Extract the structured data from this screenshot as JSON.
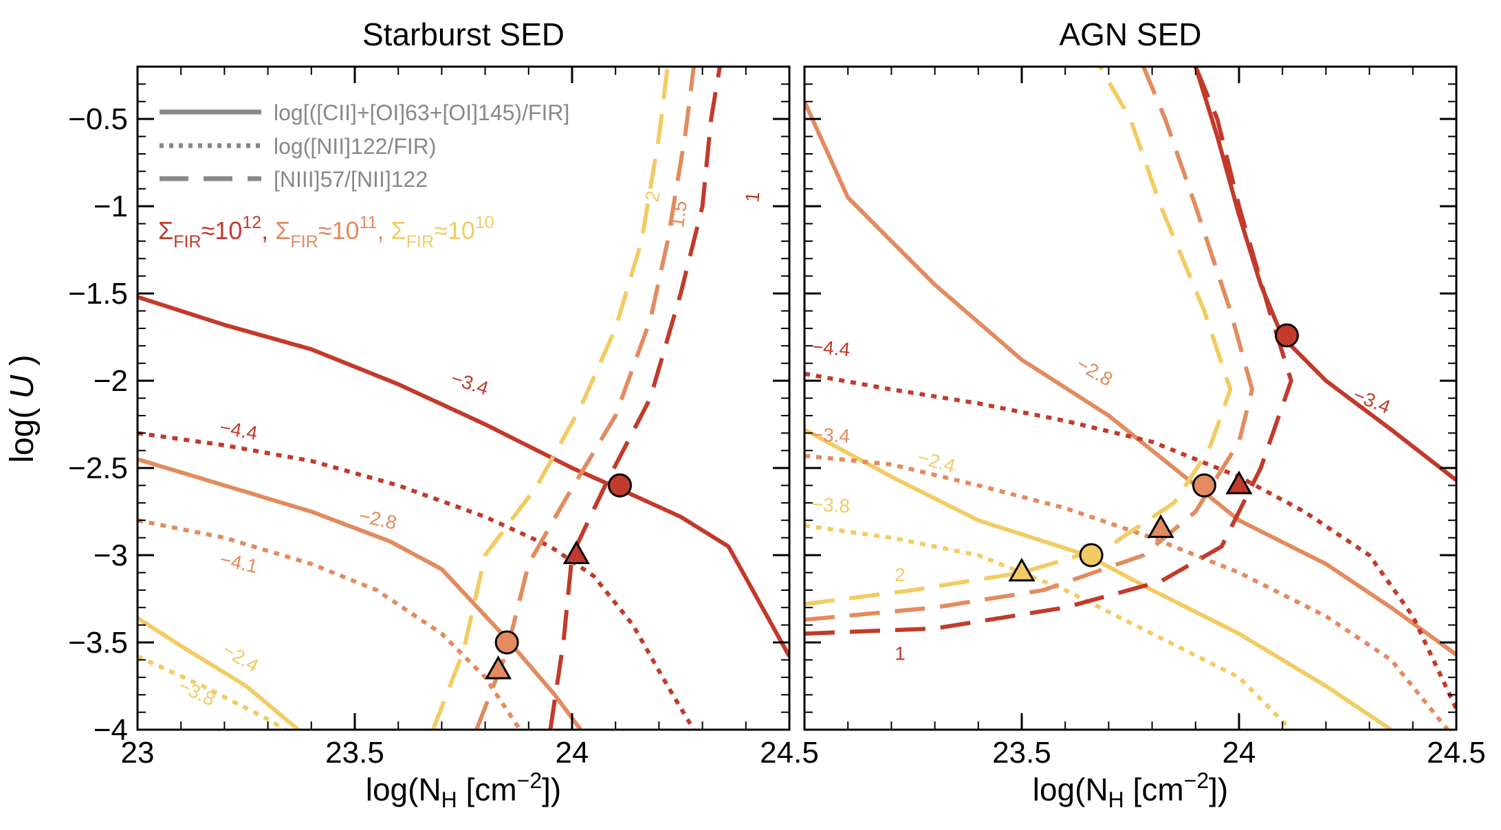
{
  "colors": {
    "red": "#c23a2b",
    "orange": "#e38b5e",
    "yellow": "#f2cc63",
    "gray": "#888888",
    "axis": "#000000"
  },
  "y_axis_label": "log( U )",
  "y_axis_label_main": "log( ",
  "y_axis_label_var": "U",
  "y_axis_label_end": " )",
  "x_axis_label": "log(NH [cm−2])",
  "x_axis_label_parts": {
    "pre": "log(N",
    "sub": "H",
    "mid": " [cm",
    "sup": "−2",
    "post": "])"
  },
  "legend": {
    "line_styles": [
      {
        "style": "solid",
        "label": "log[([CII]+[OI]63+[OI]145)/FIR]"
      },
      {
        "style": "dotted",
        "label": "log([NII]122/FIR)"
      },
      {
        "style": "dashed",
        "label": "[NIII]57/[NII]122"
      }
    ],
    "sigma_entries": [
      {
        "sym": "Σ",
        "sub": "FIR",
        "approx": "≈10",
        "exp": "12",
        "sep": ", ",
        "color": "red"
      },
      {
        "sym": "Σ",
        "sub": "FIR",
        "approx": "≈10",
        "exp": "11",
        "sep": ", ",
        "color": "orange"
      },
      {
        "sym": "Σ",
        "sub": "FIR",
        "approx": "≈10",
        "exp": "10",
        "sep": "",
        "color": "yellow"
      }
    ]
  },
  "chart_data": [
    {
      "title": "Starburst SED",
      "type": "line",
      "xlabel": "log(NH [cm−2])",
      "ylabel": "log( U )",
      "xlim": [
        23.0,
        24.5
      ],
      "ylim": [
        -4.0,
        -0.2
      ],
      "x_ticks": [
        23.0,
        23.5,
        24.0,
        24.5
      ],
      "x_tick_labels": [
        "23",
        "23.5",
        "24",
        "24.5"
      ],
      "y_ticks": [
        -4.0,
        -3.5,
        -3.0,
        -2.5,
        -2.0,
        -1.5,
        -1.0,
        -0.5
      ],
      "y_tick_labels": [
        "−4",
        "−3.5",
        "−3",
        "−2.5",
        "−2",
        "−1.5",
        "−1",
        "−0.5"
      ],
      "series": [
        {
          "name": "CII+OI/FIR Σ12",
          "style": "solid",
          "color": "red",
          "points": [
            [
              23.0,
              -1.52
            ],
            [
              23.2,
              -1.68
            ],
            [
              23.4,
              -1.82
            ],
            [
              23.6,
              -2.02
            ],
            [
              23.8,
              -2.25
            ],
            [
              24.0,
              -2.5
            ],
            [
              24.1,
              -2.61
            ],
            [
              24.25,
              -2.78
            ],
            [
              24.36,
              -2.95
            ],
            [
              24.5,
              -3.58
            ]
          ]
        },
        {
          "name": "CII+OI/FIR Σ11",
          "style": "solid",
          "color": "orange",
          "points": [
            [
              23.0,
              -2.45
            ],
            [
              23.2,
              -2.6
            ],
            [
              23.4,
              -2.75
            ],
            [
              23.58,
              -2.92
            ],
            [
              23.7,
              -3.08
            ],
            [
              23.85,
              -3.48
            ],
            [
              23.96,
              -3.8
            ],
            [
              24.02,
              -4.0
            ]
          ]
        },
        {
          "name": "CII+OI/FIR Σ10",
          "style": "solid",
          "color": "yellow",
          "points": [
            [
              23.0,
              -3.36
            ],
            [
              23.1,
              -3.52
            ],
            [
              23.25,
              -3.75
            ],
            [
              23.37,
              -4.0
            ]
          ]
        },
        {
          "name": "NII122/FIR Σ12",
          "style": "dotted",
          "color": "red",
          "points": [
            [
              23.0,
              -2.3
            ],
            [
              23.2,
              -2.37
            ],
            [
              23.4,
              -2.46
            ],
            [
              23.6,
              -2.6
            ],
            [
              23.8,
              -2.78
            ],
            [
              23.95,
              -2.95
            ],
            [
              24.05,
              -3.12
            ],
            [
              24.14,
              -3.4
            ],
            [
              24.22,
              -3.75
            ],
            [
              24.28,
              -4.0
            ]
          ]
        },
        {
          "name": "NII122/FIR Σ11",
          "style": "dotted",
          "color": "orange",
          "points": [
            [
              23.0,
              -2.8
            ],
            [
              23.2,
              -2.9
            ],
            [
              23.4,
              -3.05
            ],
            [
              23.55,
              -3.2
            ],
            [
              23.7,
              -3.45
            ],
            [
              23.8,
              -3.7
            ],
            [
              23.88,
              -4.0
            ]
          ]
        },
        {
          "name": "NII122/FIR Σ10",
          "style": "dotted",
          "color": "yellow",
          "points": [
            [
              23.0,
              -3.58
            ],
            [
              23.15,
              -3.75
            ],
            [
              23.3,
              -3.94
            ],
            [
              23.34,
              -4.0
            ]
          ]
        },
        {
          "name": "NIII57/NII122 Σ12",
          "style": "dashed",
          "color": "red",
          "points": [
            [
              23.95,
              -4.0
            ],
            [
              23.98,
              -3.5
            ],
            [
              24.0,
              -3.0
            ],
            [
              24.08,
              -2.58
            ],
            [
              24.18,
              -2.1
            ],
            [
              24.25,
              -1.5
            ],
            [
              24.3,
              -1.0
            ],
            [
              24.32,
              -0.5
            ],
            [
              24.34,
              -0.2
            ]
          ]
        },
        {
          "name": "NIII57/NII122 Σ11",
          "style": "dashed",
          "color": "orange",
          "points": [
            [
              23.78,
              -4.0
            ],
            [
              23.85,
              -3.55
            ],
            [
              23.9,
              -3.05
            ],
            [
              23.98,
              -2.7
            ],
            [
              24.1,
              -2.2
            ],
            [
              24.18,
              -1.65
            ],
            [
              24.22,
              -1.2
            ],
            [
              24.26,
              -0.6
            ],
            [
              24.28,
              -0.2
            ]
          ]
        },
        {
          "name": "NIII57/NII122 Σ10",
          "style": "dashed",
          "color": "yellow",
          "points": [
            [
              23.68,
              -4.0
            ],
            [
              23.75,
              -3.55
            ],
            [
              23.8,
              -3.0
            ],
            [
              23.92,
              -2.6
            ],
            [
              24.02,
              -2.15
            ],
            [
              24.1,
              -1.7
            ],
            [
              24.16,
              -1.2
            ],
            [
              24.2,
              -0.6
            ],
            [
              24.22,
              -0.2
            ]
          ]
        }
      ],
      "markers": [
        {
          "shape": "circle",
          "color": "red",
          "x": 24.11,
          "y": -2.6
        },
        {
          "shape": "triangle",
          "color": "red",
          "x": 24.01,
          "y": -3.0
        },
        {
          "shape": "circle",
          "color": "orange",
          "x": 23.85,
          "y": -3.5
        },
        {
          "shape": "triangle",
          "color": "orange",
          "x": 23.83,
          "y": -3.66
        }
      ],
      "annotations": [
        {
          "text": "−3.4",
          "color": "red",
          "x": 23.76,
          "y": -2.05,
          "rot": 18
        },
        {
          "text": "−4.4",
          "color": "red",
          "x": 23.23,
          "y": -2.32,
          "rot": 10
        },
        {
          "text": "−2.8",
          "color": "orange",
          "x": 23.55,
          "y": -2.83,
          "rot": 12
        },
        {
          "text": "−4.1",
          "color": "orange",
          "x": 23.23,
          "y": -3.08,
          "rot": 12
        },
        {
          "text": "−2.4",
          "color": "yellow",
          "x": 23.23,
          "y": -3.62,
          "rot": 30
        },
        {
          "text": "−3.8",
          "color": "yellow",
          "x": 23.13,
          "y": -3.82,
          "rot": 25
        },
        {
          "text": "2",
          "color": "yellow",
          "x": 24.2,
          "y": -0.95,
          "rot": -78
        },
        {
          "text": "1.5",
          "color": "orange",
          "x": 24.26,
          "y": -1.05,
          "rot": -82
        },
        {
          "text": "1",
          "color": "red",
          "x": 24.43,
          "y": -0.95,
          "rot": -85
        }
      ]
    },
    {
      "title": "AGN SED",
      "type": "line",
      "xlabel": "log(NH [cm−2])",
      "ylabel": "",
      "xlim": [
        23.0,
        24.5
      ],
      "ylim": [
        -4.0,
        -0.2
      ],
      "x_ticks": [
        23.0,
        23.5,
        24.0,
        24.5
      ],
      "x_tick_labels": [
        "",
        "23.5",
        "24",
        "24.5"
      ],
      "y_ticks": [
        -4.0,
        -3.5,
        -3.0,
        -2.5,
        -2.0,
        -1.5,
        -1.0,
        -0.5
      ],
      "y_tick_labels": [
        "",
        "",
        "",
        "",
        "",
        "",
        "",
        ""
      ],
      "series": [
        {
          "name": "CII+OI/FIR Σ12",
          "style": "solid",
          "color": "red",
          "points": [
            [
              23.9,
              -0.2
            ],
            [
              23.95,
              -0.6
            ],
            [
              24.0,
              -1.05
            ],
            [
              24.05,
              -1.45
            ],
            [
              24.1,
              -1.75
            ],
            [
              24.2,
              -2.0
            ],
            [
              24.35,
              -2.28
            ],
            [
              24.5,
              -2.57
            ]
          ]
        },
        {
          "name": "CII+OI/FIR Σ11",
          "style": "solid",
          "color": "orange",
          "points": [
            [
              23.0,
              -0.4
            ],
            [
              23.1,
              -0.95
            ],
            [
              23.3,
              -1.45
            ],
            [
              23.5,
              -1.88
            ],
            [
              23.7,
              -2.2
            ],
            [
              23.9,
              -2.6
            ],
            [
              24.0,
              -2.8
            ],
            [
              24.2,
              -3.05
            ],
            [
              24.35,
              -3.3
            ],
            [
              24.5,
              -3.57
            ]
          ]
        },
        {
          "name": "CII+OI/FIR Σ10",
          "style": "solid",
          "color": "yellow",
          "points": [
            [
              23.0,
              -2.28
            ],
            [
              23.2,
              -2.55
            ],
            [
              23.4,
              -2.8
            ],
            [
              23.65,
              -3.0
            ],
            [
              23.8,
              -3.2
            ],
            [
              24.0,
              -3.45
            ],
            [
              24.2,
              -3.75
            ],
            [
              24.35,
              -4.0
            ]
          ]
        },
        {
          "name": "NII122/FIR Σ12",
          "style": "dotted",
          "color": "red",
          "points": [
            [
              23.0,
              -1.96
            ],
            [
              23.2,
              -2.05
            ],
            [
              23.4,
              -2.13
            ],
            [
              23.6,
              -2.23
            ],
            [
              23.8,
              -2.35
            ],
            [
              24.0,
              -2.55
            ],
            [
              24.15,
              -2.75
            ],
            [
              24.3,
              -3.0
            ],
            [
              24.4,
              -3.35
            ],
            [
              24.5,
              -3.88
            ]
          ]
        },
        {
          "name": "NII122/FIR Σ11",
          "style": "dotted",
          "color": "orange",
          "points": [
            [
              23.0,
              -2.43
            ],
            [
              23.2,
              -2.48
            ],
            [
              23.4,
              -2.6
            ],
            [
              23.6,
              -2.73
            ],
            [
              23.8,
              -2.9
            ],
            [
              24.0,
              -3.1
            ],
            [
              24.2,
              -3.35
            ],
            [
              24.35,
              -3.6
            ],
            [
              24.48,
              -4.0
            ]
          ]
        },
        {
          "name": "NII122/FIR Σ10",
          "style": "dotted",
          "color": "yellow",
          "points": [
            [
              23.0,
              -2.83
            ],
            [
              23.2,
              -2.9
            ],
            [
              23.4,
              -3.0
            ],
            [
              23.6,
              -3.2
            ],
            [
              23.8,
              -3.45
            ],
            [
              24.0,
              -3.7
            ],
            [
              24.12,
              -4.0
            ]
          ]
        },
        {
          "name": "NIII57/NII122 Σ12",
          "style": "dashed",
          "color": "red",
          "points": [
            [
              23.0,
              -3.45
            ],
            [
              23.3,
              -3.42
            ],
            [
              23.6,
              -3.3
            ],
            [
              23.82,
              -3.15
            ],
            [
              23.96,
              -2.95
            ],
            [
              24.0,
              -2.75
            ],
            [
              24.05,
              -2.5
            ],
            [
              24.12,
              -2.0
            ],
            [
              24.07,
              -1.6
            ],
            [
              24.0,
              -1.0
            ],
            [
              23.95,
              -0.5
            ],
            [
              23.9,
              -0.2
            ]
          ]
        },
        {
          "name": "NIII57/NII122 Σ11",
          "style": "dashed",
          "color": "orange",
          "points": [
            [
              23.0,
              -3.37
            ],
            [
              23.3,
              -3.3
            ],
            [
              23.55,
              -3.2
            ],
            [
              23.78,
              -3.0
            ],
            [
              23.9,
              -2.75
            ],
            [
              24.0,
              -2.35
            ],
            [
              24.03,
              -2.05
            ],
            [
              23.98,
              -1.6
            ],
            [
              23.9,
              -1.0
            ],
            [
              23.83,
              -0.5
            ],
            [
              23.78,
              -0.2
            ]
          ]
        },
        {
          "name": "NIII57/NII122 Σ10",
          "style": "dashed",
          "color": "yellow",
          "points": [
            [
              23.0,
              -3.28
            ],
            [
              23.25,
              -3.2
            ],
            [
              23.5,
              -3.1
            ],
            [
              23.7,
              -2.95
            ],
            [
              23.85,
              -2.7
            ],
            [
              23.93,
              -2.4
            ],
            [
              23.98,
              -2.05
            ],
            [
              23.92,
              -1.6
            ],
            [
              23.82,
              -1.0
            ],
            [
              23.75,
              -0.5
            ],
            [
              23.68,
              -0.2
            ]
          ]
        }
      ],
      "markers": [
        {
          "shape": "circle",
          "color": "red",
          "x": 24.11,
          "y": -1.74
        },
        {
          "shape": "triangle",
          "color": "red",
          "x": 24.0,
          "y": -2.6
        },
        {
          "shape": "circle",
          "color": "orange",
          "x": 23.92,
          "y": -2.6
        },
        {
          "shape": "triangle",
          "color": "orange",
          "x": 23.82,
          "y": -2.85
        },
        {
          "shape": "circle",
          "color": "yellow",
          "x": 23.66,
          "y": -3.0
        },
        {
          "shape": "triangle",
          "color": "yellow",
          "x": 23.5,
          "y": -3.1
        }
      ],
      "annotations": [
        {
          "text": "−4.4",
          "color": "red",
          "x": 23.06,
          "y": -1.85,
          "rot": 5
        },
        {
          "text": "−3.4",
          "color": "red",
          "x": 24.3,
          "y": -2.15,
          "rot": 22
        },
        {
          "text": "−2.8",
          "color": "orange",
          "x": 23.66,
          "y": -1.98,
          "rot": 30
        },
        {
          "text": "−3.4",
          "color": "orange",
          "x": 23.06,
          "y": -2.35,
          "rot": 3
        },
        {
          "text": "−2.4",
          "color": "yellow",
          "x": 23.3,
          "y": -2.5,
          "rot": 15
        },
        {
          "text": "−3.8",
          "color": "yellow",
          "x": 23.06,
          "y": -2.75,
          "rot": 3
        },
        {
          "text": "2",
          "color": "yellow",
          "x": 23.22,
          "y": -3.15,
          "rot": 0
        },
        {
          "text": "1",
          "color": "red",
          "x": 23.22,
          "y": -3.6,
          "rot": 0
        }
      ]
    }
  ]
}
